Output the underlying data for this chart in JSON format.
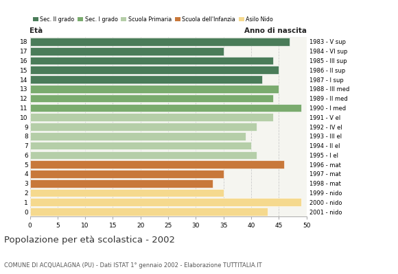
{
  "ages": [
    18,
    17,
    16,
    15,
    14,
    13,
    12,
    11,
    10,
    9,
    8,
    7,
    6,
    5,
    4,
    3,
    2,
    1,
    0
  ],
  "values": [
    47,
    35,
    44,
    45,
    42,
    45,
    44,
    49,
    44,
    41,
    39,
    40,
    41,
    46,
    35,
    33,
    35,
    49,
    43
  ],
  "right_labels": [
    "1983 - V sup",
    "1984 - VI sup",
    "1985 - III sup",
    "1986 - II sup",
    "1987 - I sup",
    "1988 - III med",
    "1989 - II med",
    "1990 - I med",
    "1991 - V el",
    "1992 - IV el",
    "1993 - III el",
    "1994 - II el",
    "1995 - I el",
    "1996 - mat",
    "1997 - mat",
    "1998 - mat",
    "1999 - nido",
    "2000 - nido",
    "2001 - nido"
  ],
  "bar_colors": [
    "#4a7c59",
    "#4a7c59",
    "#4a7c59",
    "#4a7c59",
    "#4a7c59",
    "#7aab6e",
    "#7aab6e",
    "#7aab6e",
    "#b5cea8",
    "#b5cea8",
    "#b5cea8",
    "#b5cea8",
    "#b5cea8",
    "#c8783a",
    "#c8783a",
    "#c8783a",
    "#f5d98e",
    "#f5d98e",
    "#f5d98e"
  ],
  "legend_labels": [
    "Sec. II grado",
    "Sec. I grado",
    "Scuola Primaria",
    "Scuola dell'Infanzia",
    "Asilo Nido"
  ],
  "legend_colors": [
    "#4a7c59",
    "#7aab6e",
    "#b5cea8",
    "#c8783a",
    "#f5d98e"
  ],
  "title": "Popolazione per età scolastica - 2002",
  "subtitle": "COMUNE DI ACQUALAGNA (PU) - Dati ISTAT 1° gennaio 2002 - Elaborazione TUTTITALIA.IT",
  "xlabel_left": "Età",
  "xlabel_right": "Anno di nascita",
  "xlim": [
    0,
    50
  ],
  "xticks": [
    0,
    5,
    10,
    15,
    20,
    25,
    30,
    35,
    40,
    45,
    50
  ],
  "grid_color": "#cccccc",
  "bg_color": "#ffffff",
  "plot_bg_color": "#f5f5f0",
  "bar_height": 0.85
}
